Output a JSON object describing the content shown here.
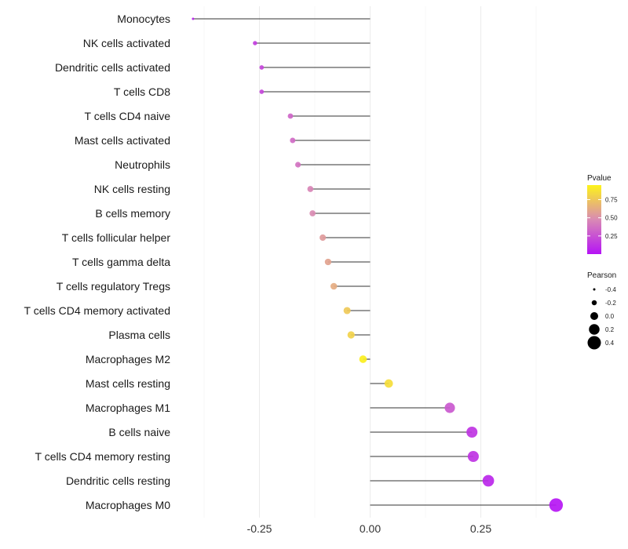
{
  "chart_data": {
    "type": "lollipop",
    "orientation": "horizontal",
    "title": "",
    "xlabel": "",
    "ylabel": "",
    "xlim": [
      -0.375,
      0.425
    ],
    "x_ticks": [
      -0.25,
      0.0,
      0.25
    ],
    "x_tick_labels": [
      "-0.25",
      "0.00",
      "0.25"
    ],
    "categories": [
      "Monocytes",
      "NK cells activated",
      "Dendritic cells activated",
      "T cells CD8",
      "T cells CD4 naive",
      "Mast cells activated",
      "Neutrophils",
      "NK cells resting",
      "B cells memory",
      "T cells follicular helper",
      "T cells gamma delta",
      "T cells regulatory  Tregs ",
      "T cells CD4 memory activated",
      "Plasma cells",
      "Macrophages M2",
      "Mast cells resting",
      "Macrophages M1",
      "B cells naive",
      "T cells CD4 memory resting",
      "Dendritic cells resting",
      "Macrophages M0"
    ],
    "pearson": [
      -0.4,
      -0.26,
      -0.245,
      -0.245,
      -0.18,
      -0.175,
      -0.163,
      -0.135,
      -0.13,
      -0.107,
      -0.095,
      -0.082,
      -0.052,
      -0.043,
      -0.016,
      0.042,
      0.18,
      0.23,
      0.233,
      0.267,
      0.42
    ],
    "pvalue": [
      0.05,
      0.17,
      0.2,
      0.2,
      0.33,
      0.35,
      0.38,
      0.46,
      0.48,
      0.55,
      0.59,
      0.63,
      0.76,
      0.8,
      0.93,
      0.85,
      0.28,
      0.13,
      0.13,
      0.08,
      0.01
    ],
    "legend_color": {
      "title": "Pvalue",
      "ticks": [
        0.25,
        0.5,
        0.75
      ],
      "tick_labels": [
        "0.25",
        "0.50",
        "0.75"
      ],
      "range": [
        0.0,
        0.95
      ],
      "low_color": "#b513f5",
      "mid_color": "#d98ab4",
      "high_color": "#fdf31a"
    },
    "legend_size": {
      "title": "Pearson",
      "values": [
        -0.4,
        -0.2,
        0.0,
        0.2,
        0.4
      ],
      "labels": [
        "-0.4",
        "-0.2",
        "0.0",
        "0.2",
        "0.4"
      ]
    },
    "legend_position": "right",
    "grid": "vertical"
  }
}
